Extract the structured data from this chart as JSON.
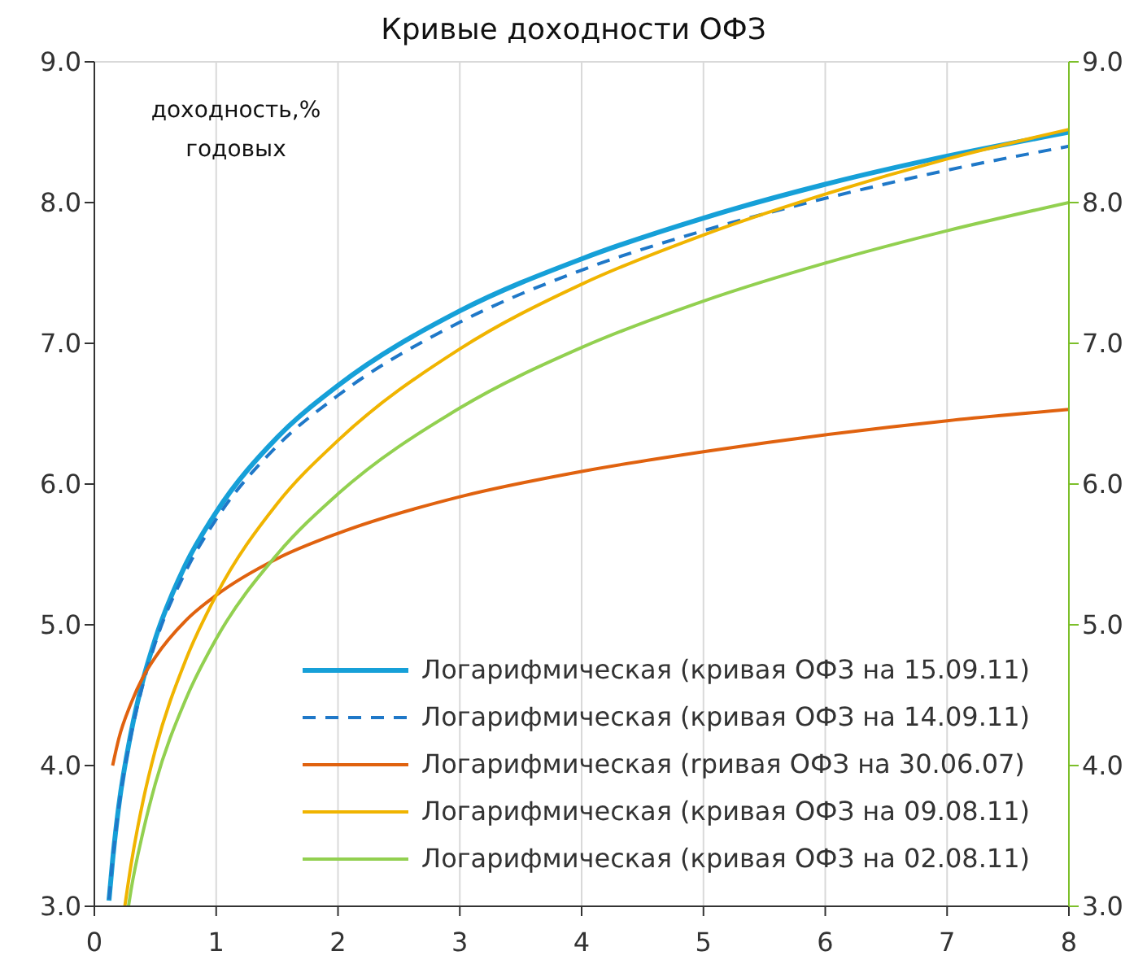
{
  "chart_data": {
    "type": "line",
    "title": "Кривые доходности ОФЗ",
    "annotations": [
      "доходность,% годовых"
    ],
    "xlim": [
      0,
      8
    ],
    "xticks": [
      0,
      1,
      2,
      3,
      4,
      5,
      6,
      7,
      8
    ],
    "ylim": [
      3,
      9
    ],
    "yticks": [
      {
        "value": 3,
        "label": "3.0"
      },
      {
        "value": 4,
        "label": "4.0"
      },
      {
        "value": 5,
        "label": "5.0"
      },
      {
        "value": 6,
        "label": "6.0"
      },
      {
        "value": 7,
        "label": "7.0"
      },
      {
        "value": 8,
        "label": "8.0"
      },
      {
        "value": 9,
        "label": "9.0"
      }
    ],
    "y2lim": [
      3,
      9
    ],
    "y2ticks": [
      {
        "value": 3,
        "label": "3.0"
      },
      {
        "value": 4,
        "label": "4.0"
      },
      {
        "value": 5,
        "label": "5.0"
      },
      {
        "value": 6,
        "label": "6.0"
      },
      {
        "value": 7,
        "label": "7.0"
      },
      {
        "value": 8,
        "label": "8.0"
      },
      {
        "value": 9,
        "label": "9.0"
      }
    ],
    "grid": true,
    "legend": "bottom right",
    "marker": "none",
    "series": [
      {
        "name": "Логарифмическая (кривая ОФЗ на 15.09.11)",
        "color": "#16a0d8",
        "line_style": "solid",
        "x": [
          0.12,
          0.15,
          0.2,
          0.3,
          0.4,
          0.5,
          0.75,
          1,
          1.5,
          2,
          3,
          4,
          5,
          6,
          7,
          8
        ],
        "values": [
          3.04,
          3.33,
          3.71,
          4.23,
          4.61,
          4.9,
          5.43,
          5.8,
          6.33,
          6.7,
          7.23,
          7.6,
          7.89,
          8.13,
          8.33,
          8.5
        ]
      },
      {
        "name": "Логарифмическая (кривая ОФЗ на 14.09.11)",
        "color": "#1f78c8",
        "line_style": "dashed",
        "x": [
          0.12,
          0.15,
          0.2,
          0.3,
          0.4,
          0.5,
          0.75,
          1,
          1.5,
          2,
          3,
          4,
          5,
          6,
          7,
          8
        ],
        "values": [
          3.05,
          3.33,
          3.7,
          4.21,
          4.58,
          4.87,
          5.38,
          5.75,
          6.27,
          6.63,
          7.15,
          7.52,
          7.8,
          8.03,
          8.23,
          8.4
        ]
      },
      {
        "name": "Логарифмическая (rривая ОФЗ на 30.06.07)",
        "color": "#e0620f",
        "line_style": "solid",
        "x": [
          0.15,
          0.2,
          0.3,
          0.4,
          0.5,
          0.75,
          1,
          1.5,
          2,
          3,
          4,
          5,
          6,
          7,
          8
        ],
        "values": [
          4.0,
          4.19,
          4.44,
          4.63,
          4.77,
          5.03,
          5.21,
          5.47,
          5.65,
          5.91,
          6.09,
          6.23,
          6.35,
          6.45,
          6.53
        ]
      },
      {
        "name": "Логарифмическая (кривая ОФЗ на 09.08.11)",
        "color": "#f0b400",
        "line_style": "solid",
        "x": [
          0.25,
          0.3,
          0.4,
          0.5,
          0.75,
          1,
          1.5,
          2,
          3,
          4,
          5,
          6,
          7,
          8
        ],
        "values": [
          3.0,
          3.29,
          3.75,
          4.11,
          4.75,
          5.21,
          5.86,
          6.31,
          6.96,
          7.42,
          7.77,
          8.06,
          8.31,
          8.52
        ]
      },
      {
        "name": "Логарифмическая (кривая ОФЗ на 02.08.11)",
        "color": "#92d050",
        "line_style": "solid",
        "x": [
          0.28,
          0.3,
          0.4,
          0.5,
          0.75,
          1,
          1.5,
          2,
          3,
          4,
          5,
          6,
          7,
          8
        ],
        "values": [
          3.0,
          3.11,
          3.53,
          3.87,
          4.47,
          4.9,
          5.5,
          5.93,
          6.54,
          6.97,
          7.3,
          7.57,
          7.8,
          8.0
        ]
      }
    ]
  }
}
